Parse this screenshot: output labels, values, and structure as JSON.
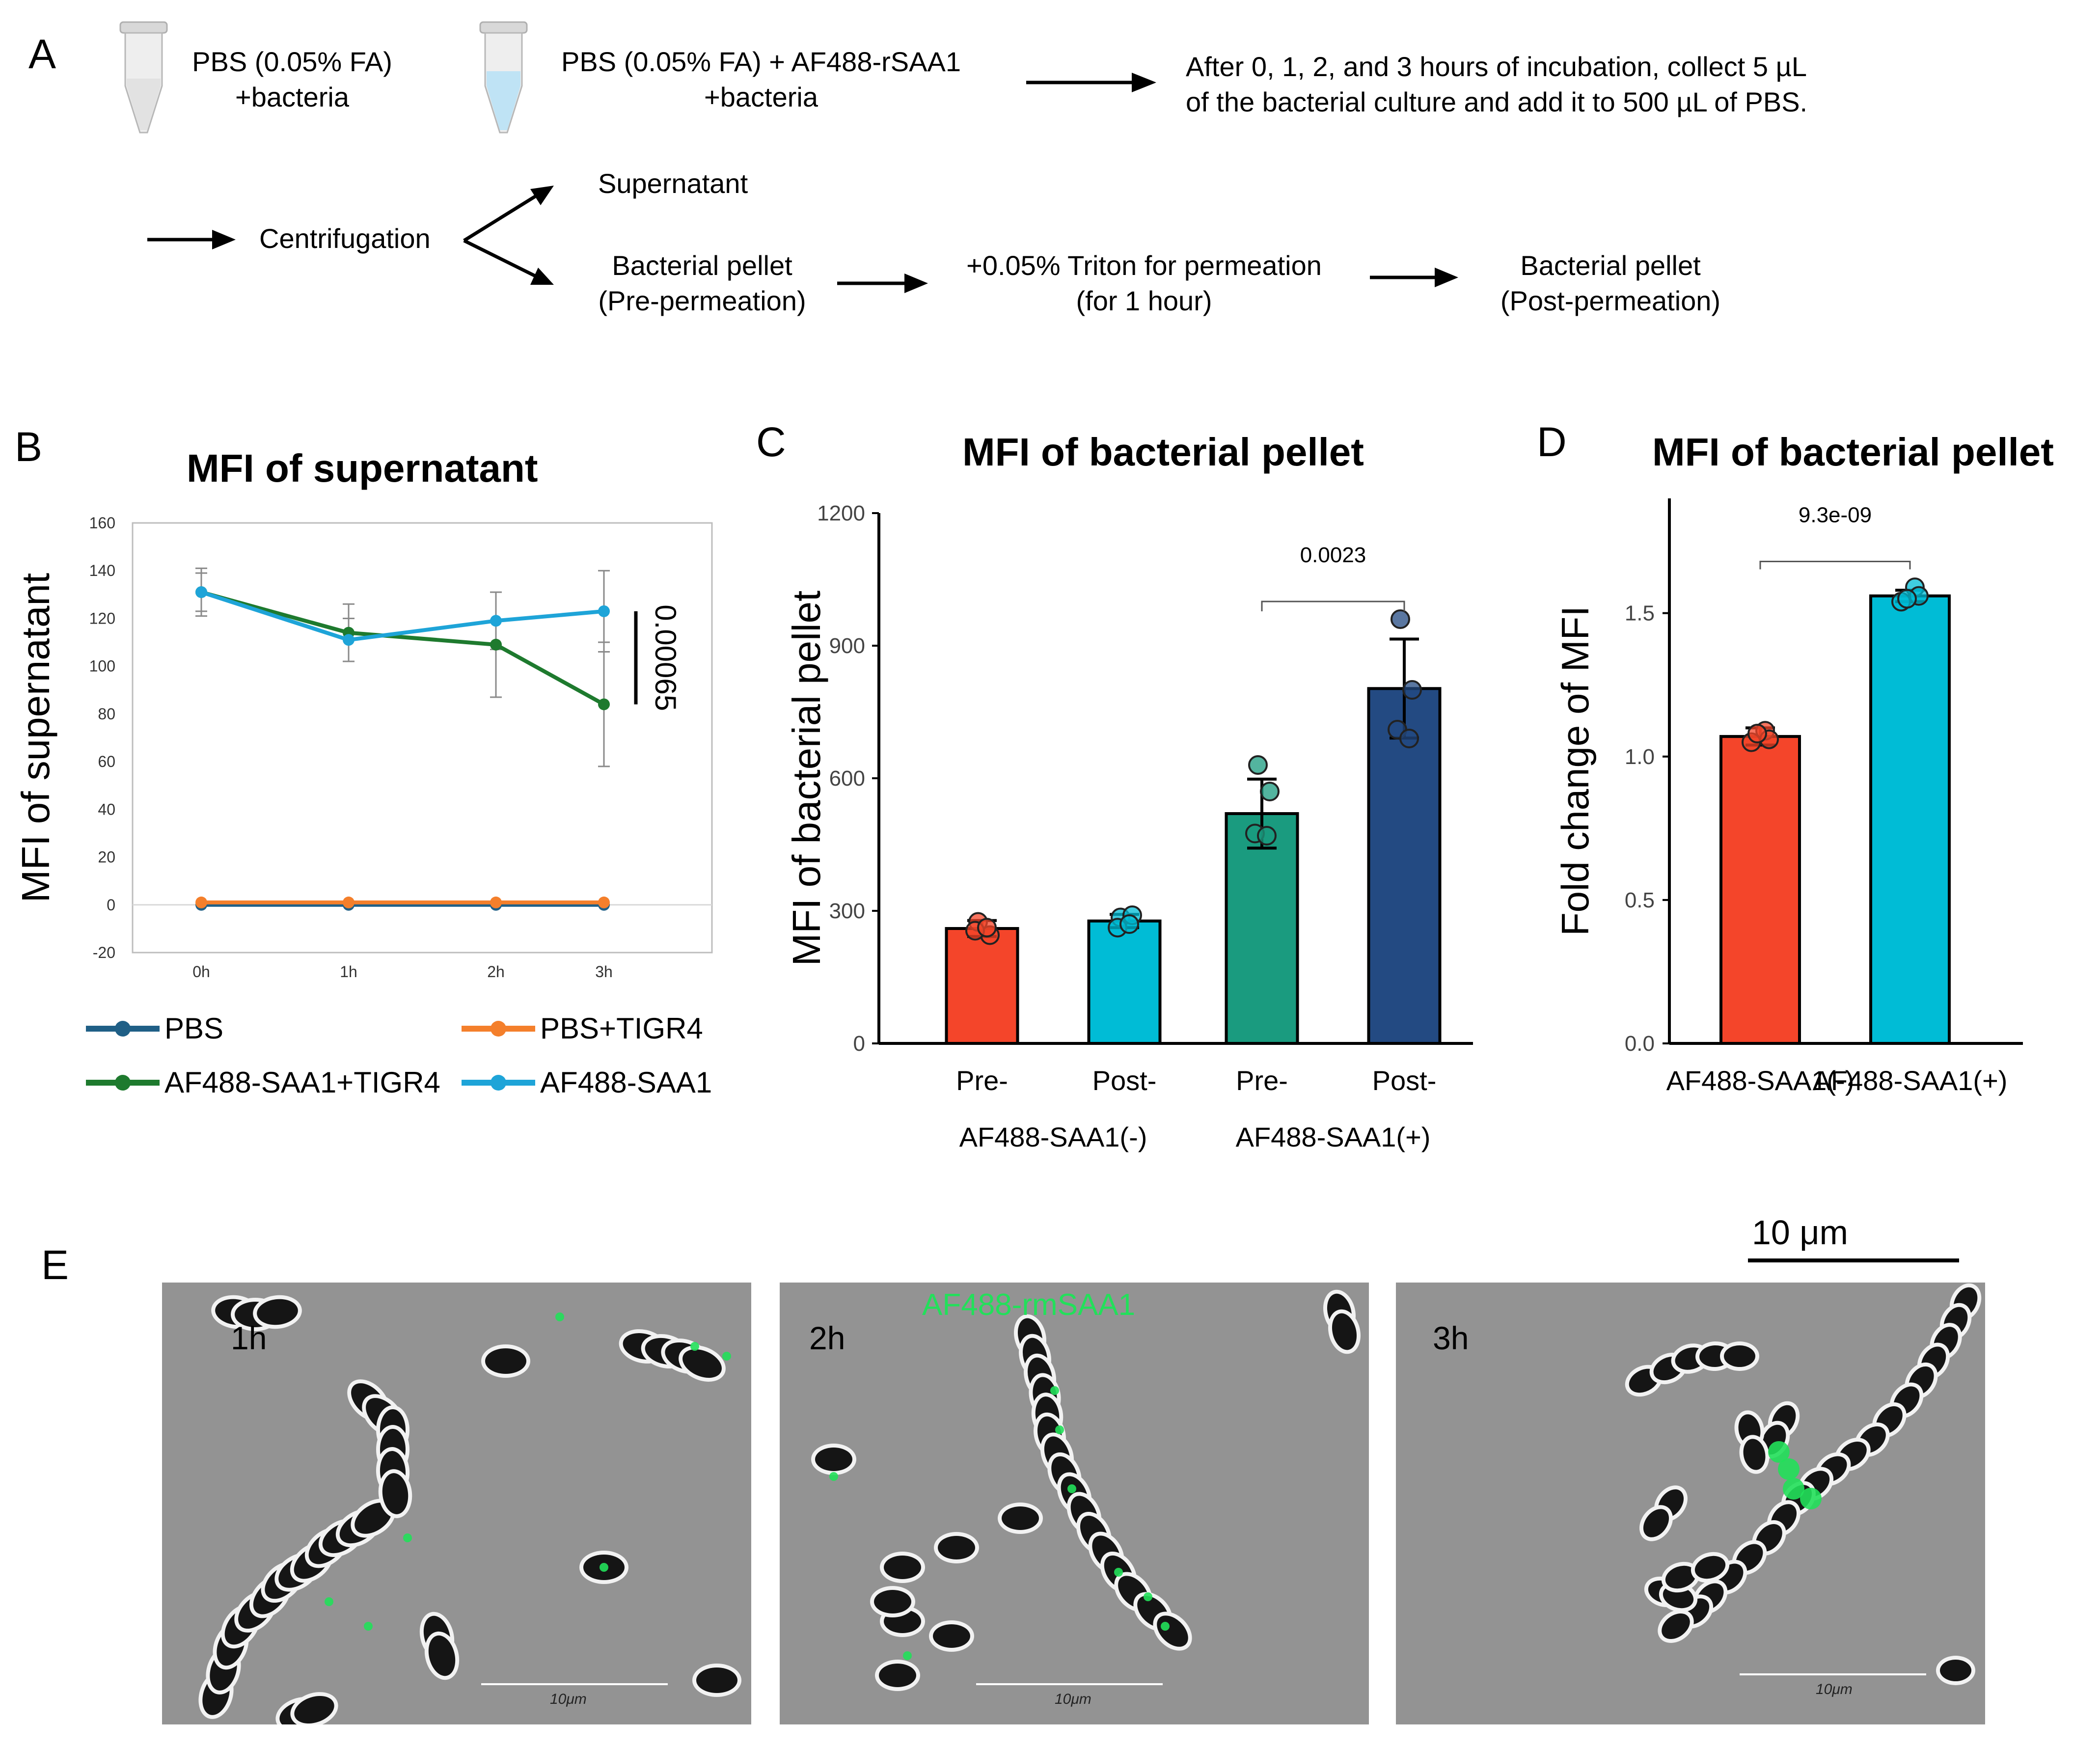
{
  "panel_letters": {
    "a": "A",
    "b": "B",
    "c": "C",
    "d": "D",
    "e": "E"
  },
  "panel_a": {
    "tube1_label": [
      "PBS (0.05% FA)",
      "+bacteria"
    ],
    "tube2_label": [
      "PBS (0.05% FA) + AF488-rSAA1",
      "+bacteria"
    ],
    "incubation_text": [
      "After 0, 1, 2, and 3 hours of incubation, collect 5 µL",
      "of the bacterial culture and add it to 500 µL of PBS."
    ],
    "centrifugation": "Centrifugation",
    "supernatant": "Supernatant",
    "pellet_pre": [
      "Bacterial pellet",
      "(Pre-permeation)"
    ],
    "triton": [
      "+0.05% Triton for permeation",
      "(for 1 hour)"
    ],
    "pellet_post": [
      "Bacterial pellet",
      "(Post-permeation)"
    ],
    "colors": {
      "tube_clear": "#e6e6e6",
      "tube_blue": "#bfe3f5"
    }
  },
  "chart_data": [
    {
      "panel": "B",
      "type": "line",
      "title": "MFI of supernatant",
      "ylabel": "MFI of supernatant",
      "xlabel": "",
      "categories": [
        "0h",
        "1h",
        "2h",
        "3h"
      ],
      "yticks": [
        -20,
        0,
        20,
        40,
        60,
        80,
        100,
        120,
        140,
        160
      ],
      "ylim": [
        -20,
        160
      ],
      "grid": false,
      "series": [
        {
          "name": "PBS",
          "color": "#1f5f86",
          "values": [
            0,
            0,
            0,
            0
          ],
          "errors": [
            0,
            0,
            0,
            0
          ]
        },
        {
          "name": "PBS+TIGR4",
          "color": "#f47f2b",
          "values": [
            1,
            1,
            1,
            1
          ],
          "errors": [
            0,
            0,
            0,
            0
          ]
        },
        {
          "name": "AF488-SAA1+TIGR4",
          "color": "#1e7a2e",
          "values": [
            131,
            114,
            109,
            84
          ],
          "errors": [
            8,
            12,
            22,
            26
          ]
        },
        {
          "name": "AF488-SAA1",
          "color": "#1ea4d8",
          "values": [
            131,
            111,
            119,
            123
          ],
          "errors": [
            10,
            9,
            12,
            17
          ]
        }
      ],
      "legend": [
        "PBS",
        "PBS+TIGR4",
        "AF488-SAA1+TIGR4",
        "AF488-SAA1"
      ],
      "legend_position": "bottom",
      "annotation": "0.00065"
    },
    {
      "panel": "C",
      "type": "bar",
      "title": "MFI of bacterial pellet",
      "ylabel": "MFI of bacterial pellet",
      "categories": [
        "Pre-",
        "Post-",
        "Pre-",
        "Post-"
      ],
      "groups": [
        "AF488-SAA1(-)",
        "AF488-SAA1(+)"
      ],
      "values": [
        260,
        277,
        520,
        803
      ],
      "errors": [
        18,
        15,
        78,
        112
      ],
      "colors": [
        "#f4452a",
        "#00bcd6",
        "#1a9b7f",
        "#234a82"
      ],
      "points": [
        [
          275,
          245,
          255,
          262
        ],
        [
          285,
          290,
          262,
          270
        ],
        [
          630,
          570,
          475,
          470
        ],
        [
          960,
          800,
          710,
          690
        ]
      ],
      "yticks": [
        0,
        300,
        600,
        900,
        1200
      ],
      "ytick_labels": [
        "0",
        "300",
        "600",
        "900",
        "1200"
      ],
      "ylim": [
        0,
        1200
      ],
      "annotation": "0.0023"
    },
    {
      "panel": "D",
      "type": "bar",
      "title": "MFI of bacterial pellet",
      "ylabel": "Fold change of MFI",
      "categories": [
        "AF488-SAA1(-)",
        "AF488-SAA1(+)"
      ],
      "values": [
        1.07,
        1.56
      ],
      "errors": [
        0.03,
        0.02
      ],
      "colors": [
        "#f4452a",
        "#00bcd6"
      ],
      "points": [
        [
          1.09,
          1.05,
          1.06,
          1.08
        ],
        [
          1.59,
          1.54,
          1.56,
          1.55
        ]
      ],
      "yticks": [
        0.0,
        0.5,
        1.0,
        1.5
      ],
      "ytick_labels": [
        "0.0",
        "0.5",
        "1.0",
        "1.5"
      ],
      "ylim": [
        0,
        1.9
      ],
      "annotation": "9.3e-09"
    }
  ],
  "panel_e": {
    "scale_bar_label": "10 μm",
    "images": [
      {
        "time_label": "1h",
        "overlay_label": "",
        "scale_label": "10μm"
      },
      {
        "time_label": "2h",
        "overlay_label": "AF488-rmSAA1",
        "scale_label": "10μm"
      },
      {
        "time_label": "3h",
        "overlay_label": "",
        "scale_label": "10μm"
      }
    ],
    "colors": {
      "background": "#8f8f8f",
      "fluorescence": "#22e05a"
    }
  }
}
